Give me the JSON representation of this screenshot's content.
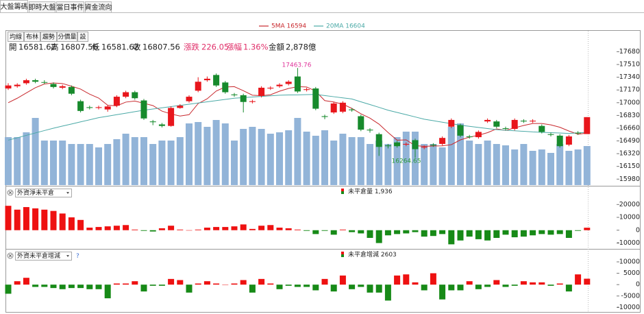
{
  "tabs": [
    "大盤籌碼",
    "即時大盤",
    "當日事件",
    "資金流向"
  ],
  "toolbar": [
    "均線",
    "布林",
    "趨勢",
    "分價量",
    "設"
  ],
  "info": [
    {
      "label": "開",
      "value": "16581.62"
    },
    {
      "label": "高",
      "value": "16807.56"
    },
    {
      "label": "低",
      "value": "16581.62"
    },
    {
      "label": "收",
      "value": "16807.56"
    },
    {
      "label": "漲跌",
      "value": "226.05"
    },
    {
      "label": "漲幅",
      "value": "1.36%"
    },
    {
      "label": "金額",
      "value": "2,878億"
    }
  ],
  "chart_data": [
    {
      "type": "candlestick",
      "open": [
        17190,
        17220,
        17260,
        17300,
        17275,
        17250,
        17200,
        17210,
        17020,
        16940,
        16930,
        16910,
        16960,
        17080,
        17140,
        17030,
        16750,
        16710,
        16690,
        16930,
        17020,
        17160,
        17300,
        17370,
        17270,
        17110,
        17100,
        17010,
        17090,
        17190,
        17220,
        17250,
        17350,
        17170,
        17190,
        16820,
        16870,
        16880,
        16910,
        16820,
        16640,
        16580,
        16430,
        16470,
        16440,
        16500,
        16400,
        16440,
        16450,
        16680,
        16700,
        16550,
        16540,
        16750,
        16750,
        16660,
        16650,
        16760,
        16750,
        16690,
        16580,
        16560,
        16440,
        16600,
        16581.62
      ],
      "high": [
        17260,
        17260,
        17320,
        17320,
        17300,
        17270,
        17240,
        17230,
        17040,
        16960,
        16960,
        16970,
        17100,
        17160,
        17160,
        17050,
        16770,
        16730,
        16950,
        16980,
        17100,
        17340,
        17350,
        17390,
        17290,
        17130,
        17120,
        17040,
        17220,
        17220,
        17260,
        17300,
        17463.76,
        17200,
        17210,
        16840,
        17010,
        17020,
        16930,
        16840,
        16660,
        16600,
        16450,
        16490,
        16470,
        16520,
        16430,
        16460,
        16550,
        16790,
        16720,
        16570,
        16630,
        16790,
        16770,
        16680,
        16790,
        16780,
        16780,
        16710,
        16600,
        16580,
        16570,
        16620,
        16807.56
      ],
      "low": [
        17170,
        17200,
        17240,
        17260,
        17250,
        17190,
        17180,
        17100,
        16870,
        16910,
        16910,
        16880,
        16940,
        17060,
        17040,
        16770,
        16700,
        16670,
        16680,
        16920,
        17000,
        17140,
        17280,
        17210,
        17120,
        17080,
        16870,
        16990,
        17070,
        17170,
        17200,
        17230,
        17130,
        17150,
        16900,
        16780,
        16850,
        16860,
        16880,
        16620,
        16600,
        16290,
        16390,
        16400,
        16420,
        16264.65,
        16380,
        16410,
        16430,
        16660,
        16540,
        16520,
        16520,
        16730,
        16660,
        16630,
        16630,
        16730,
        16730,
        16590,
        16550,
        16400,
        16420,
        16570,
        16581.62
      ],
      "close": [
        17230,
        17240,
        17300,
        17280,
        17270,
        17210,
        17220,
        17120,
        16890,
        16930,
        16940,
        16950,
        17080,
        17140,
        17060,
        16790,
        16740,
        16690,
        16930,
        16960,
        17080,
        17280,
        17320,
        17230,
        17140,
        17100,
        17010,
        17020,
        17200,
        17200,
        17240,
        17280,
        17150,
        17180,
        16920,
        16810,
        16990,
        17000,
        16900,
        16640,
        16630,
        16410,
        16420,
        16420,
        16450,
        16380,
        16410,
        16430,
        16530,
        16770,
        16560,
        16540,
        16610,
        16770,
        16680,
        16650,
        16770,
        16750,
        16760,
        16610,
        16570,
        16420,
        16550,
        16590,
        16807.56
      ],
      "up_color": "#e8161c",
      "down_color": "#178a2c",
      "volume": [
        70,
        70,
        77,
        98,
        65,
        65,
        65,
        60,
        60,
        60,
        55,
        60,
        67,
        75,
        70,
        70,
        60,
        65,
        65,
        70,
        90,
        92,
        85,
        95,
        90,
        65,
        82,
        85,
        82,
        75,
        77,
        80,
        98,
        78,
        72,
        80,
        65,
        75,
        70,
        70,
        60,
        65,
        60,
        70,
        78,
        78,
        60,
        60,
        55,
        85,
        90,
        65,
        60,
        65,
        60,
        58,
        52,
        60,
        50,
        52,
        47,
        60,
        50,
        52,
        57
      ],
      "volume_color": "#92b4d8",
      "vlim": [
        0,
        224
      ],
      "ylim": [
        15900,
        17950
      ],
      "yticks": [
        15980,
        16150,
        16320,
        16490,
        16660,
        16830,
        17000,
        17170,
        17340,
        17510,
        17680
      ],
      "series": [
        {
          "name": "5MA 16594",
          "color": "#c8282d",
          "values": [
            17000,
            17060,
            17130,
            17200,
            17250,
            17264,
            17256,
            17220,
            17182,
            17114,
            17062,
            16966,
            16958,
            17008,
            17022,
            16992,
            16962,
            16888,
            16850,
            16822,
            16840,
            16988,
            17052,
            17156,
            17210,
            17214,
            17160,
            17100,
            17094,
            17106,
            17154,
            17190,
            17214,
            17210,
            17154,
            17028,
            17010,
            16980,
            16924,
            16852,
            16794,
            16714,
            16602,
            16500,
            16504,
            16426,
            16418,
            16422,
            16424,
            16440,
            16504,
            16540,
            16566,
            16600,
            16650,
            16630,
            16664,
            16696,
            16722,
            16722,
            16704,
            16672,
            16622,
            16580,
            16594
          ]
        },
        {
          "name": "20MA 16604",
          "color": "#4aa9a6",
          "values": [
            16500,
            16532,
            16564,
            16596,
            16628,
            16660,
            16688,
            16716,
            16744,
            16772,
            16800,
            16820,
            16840,
            16860,
            16880,
            16900,
            16916,
            16932,
            16948,
            16964,
            16980,
            16996,
            17012,
            17028,
            17044,
            17060,
            17068,
            17076,
            17084,
            17092,
            17100,
            17103,
            17105,
            17108,
            17110,
            17095,
            17080,
            17065,
            17050,
            17012,
            16975,
            16938,
            16900,
            16870,
            16840,
            16810,
            16780,
            16760,
            16740,
            16720,
            16700,
            16685,
            16670,
            16655,
            16640,
            16632,
            16625,
            16618,
            16610,
            16605,
            16600,
            16595,
            16590,
            16597,
            16604
          ]
        }
      ],
      "annotations": [
        {
          "text": "17463.76",
          "color": "#e0359a"
        },
        {
          "text": "16264.65",
          "color": "#2a9a3a"
        }
      ]
    },
    {
      "type": "bar",
      "selector": "外資淨未平倉",
      "legend": "未平倉量 1,936",
      "values": [
        19000,
        16000,
        18000,
        17000,
        16000,
        15000,
        13000,
        10000,
        8000,
        2000,
        2500,
        3000,
        3500,
        4000,
        500,
        -500,
        -1000,
        1500,
        3500,
        500,
        0,
        500,
        2000,
        2500,
        2500,
        3000,
        4500,
        1000,
        3500,
        4000,
        2000,
        1500,
        500,
        -500,
        -3000,
        -500,
        -3500,
        500,
        -1500,
        -2500,
        -6000,
        -10000,
        -4000,
        -3000,
        -2500,
        -1500,
        -5000,
        -4500,
        -3000,
        -11000,
        -8000,
        -5000,
        -7000,
        -8000,
        -6000,
        -3500,
        -5500,
        -5000,
        -4000,
        -3000,
        -3500,
        -3000,
        -6000,
        -500,
        1936
      ],
      "up_color": "#ee1111",
      "down_color": "#178a17",
      "ylim": [
        -14000,
        25500
      ],
      "yticks": [
        20000,
        10000,
        0,
        -10000
      ]
    },
    {
      "type": "bar",
      "selector": "外資未平倉增減",
      "help": "?",
      "legend": "未平倉增減 2603",
      "values": [
        -4000,
        1500,
        3000,
        -1000,
        -1000,
        -1500,
        -2000,
        -1500,
        -1500,
        -2000,
        -2000,
        -6000,
        500,
        500,
        1500,
        -3000,
        -500,
        -500,
        2500,
        2000,
        -3500,
        500,
        1500,
        500,
        0,
        500,
        2000,
        -3500,
        2500,
        500,
        -2000,
        -500,
        -1000,
        -1000,
        -2500,
        2500,
        -3000,
        4000,
        -2000,
        -1000,
        -3500,
        -3500,
        -7000,
        4000,
        4500,
        1000,
        -2500,
        5000,
        -6500,
        -2500,
        -2500,
        1500,
        -2000,
        -1000,
        2000,
        -1000,
        -500,
        1500,
        1000,
        1000,
        -500,
        500,
        -3000,
        4500,
        2603
      ],
      "up_color": "#ee1111",
      "down_color": "#178a17",
      "ylim": [
        -12000,
        13000
      ],
      "yticks": [
        10000,
        5000,
        0,
        -5000,
        -10000
      ]
    }
  ]
}
